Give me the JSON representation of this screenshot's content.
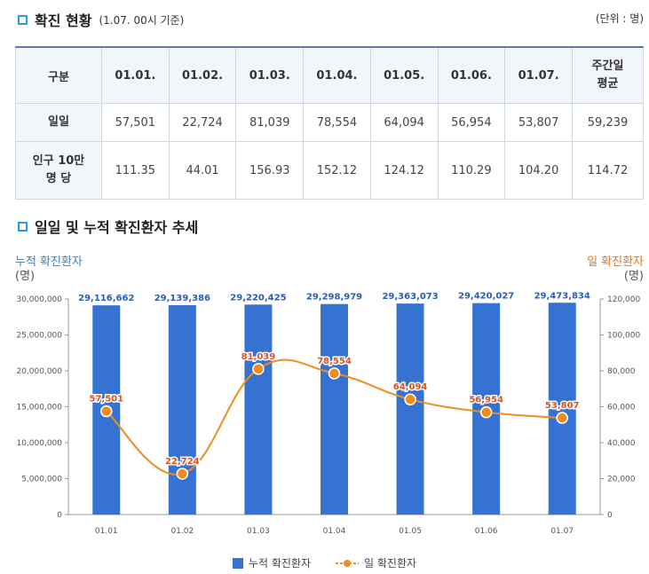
{
  "section1": {
    "title": "확진 현황",
    "subtitle": "(1.07. 00시 기준)",
    "unit": "(단위 : 명)"
  },
  "table": {
    "headers": [
      "구분",
      "01.01.",
      "01.02.",
      "01.03.",
      "01.04.",
      "01.05.",
      "01.06.",
      "01.07."
    ],
    "avg_header": [
      "주간일",
      "평균"
    ],
    "rows": [
      {
        "label": [
          "일일"
        ],
        "values": [
          "57,501",
          "22,724",
          "81,039",
          "78,554",
          "64,094",
          "56,954",
          "53,807",
          "59,239"
        ]
      },
      {
        "label": [
          "인구 10만",
          "명 당"
        ],
        "values": [
          "111.35",
          "44.01",
          "156.93",
          "152.12",
          "124.12",
          "110.29",
          "104.20",
          "114.72"
        ]
      }
    ]
  },
  "section2": {
    "title": "일일 및 누적 확진환자 추세"
  },
  "chart_data": {
    "type": "bar+line",
    "categories": [
      "01.01",
      "01.02",
      "01.03",
      "01.04",
      "01.05",
      "01.06",
      "01.07"
    ],
    "series": [
      {
        "name": "누적 확진환자",
        "type": "bar",
        "axis": "left",
        "color": "#3572d1",
        "values": [
          29116662,
          29139386,
          29220425,
          29298979,
          29363073,
          29420027,
          29473834
        ],
        "labels": [
          "29,116,662",
          "29,139,386",
          "29,220,425",
          "29,298,979",
          "29,363,073",
          "29,420,027",
          "29,473,834"
        ]
      },
      {
        "name": "일 확진환자",
        "type": "line",
        "axis": "right",
        "color": "#f08c1e",
        "values": [
          57501,
          22724,
          81039,
          78554,
          64094,
          56954,
          53807
        ],
        "labels": [
          "57,501",
          "22,724",
          "81,039",
          "78,554",
          "64,094",
          "56,954",
          "53,807"
        ]
      }
    ],
    "y_left": {
      "title": "누적 확진환자",
      "unit": "(명)",
      "min": 0,
      "max": 30000000,
      "ticks": [
        "0",
        "5,000,000",
        "10,000,000",
        "15,000,000",
        "20,000,000",
        "25,000,000",
        "30,000,000"
      ]
    },
    "y_right": {
      "title": "일 확진환자",
      "unit": "(명)",
      "min": 0,
      "max": 120000,
      "ticks": [
        "0",
        "20,000",
        "40,000",
        "60,000",
        "80,000",
        "100,000",
        "120,000"
      ]
    },
    "legend": [
      "누적 확진환자",
      "일 확진환자"
    ]
  }
}
